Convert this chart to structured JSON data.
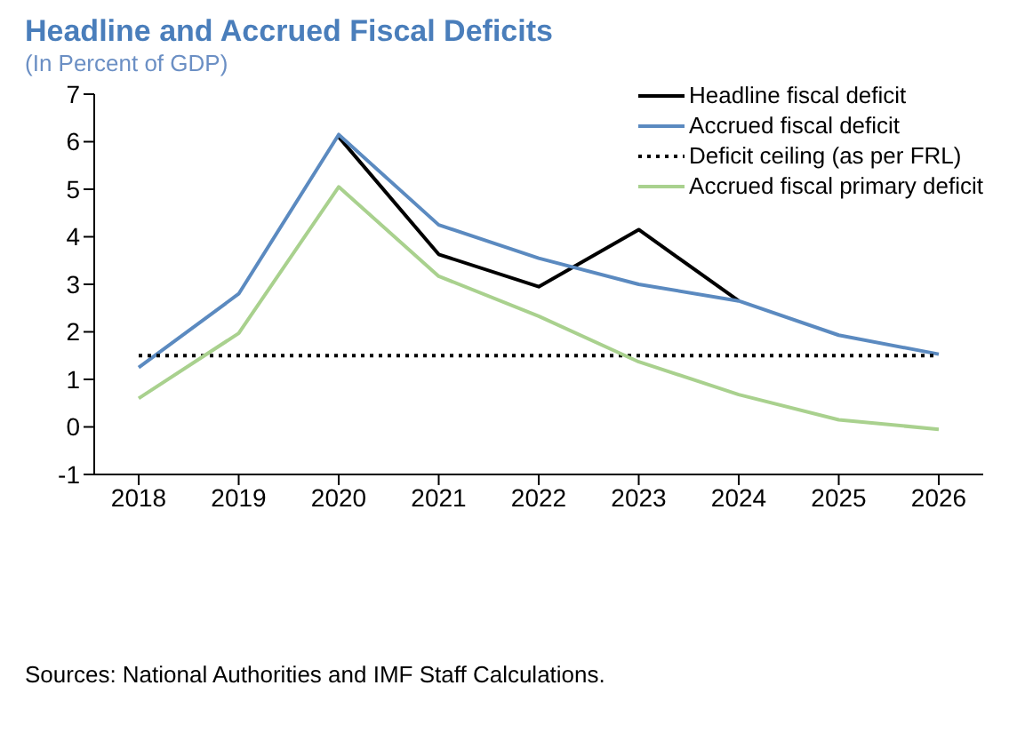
{
  "chart_data": {
    "type": "line",
    "title": "Headline and Accrued Fiscal Deficits",
    "subtitle": "(In Percent of GDP)",
    "annotations": [
      "Sources: National Authorities and IMF Staff Calculations."
    ],
    "categories": [
      "2018",
      "2019",
      "2020",
      "2021",
      "2022",
      "2023",
      "2024",
      "2025",
      "2026"
    ],
    "ylim": [
      -1,
      7
    ],
    "yticks": [
      -1,
      0,
      1,
      2,
      3,
      4,
      5,
      6,
      7
    ],
    "grid": false,
    "legend": "top right",
    "marker": "none",
    "series": [
      {
        "name": "Headline fiscal deficit",
        "color": "#000000",
        "line_style": "solid",
        "values": [
          null,
          null,
          6.1,
          3.63,
          2.95,
          4.15,
          2.65,
          null,
          null
        ]
      },
      {
        "name": "Accrued fiscal deficit",
        "color": "#5b8ac0",
        "line_style": "solid",
        "values": [
          1.25,
          2.8,
          6.15,
          4.25,
          3.55,
          3.0,
          2.65,
          1.93,
          1.53
        ]
      },
      {
        "name": "Deficit ceiling (as per FRL)",
        "color": "#000000",
        "line_style": "dotted",
        "values": [
          1.5,
          1.5,
          1.5,
          1.5,
          1.5,
          1.5,
          1.5,
          1.5,
          1.5
        ]
      },
      {
        "name": "Accrued fiscal primary deficit",
        "color": "#a9d18e",
        "line_style": "solid",
        "values": [
          0.6,
          1.97,
          5.05,
          3.17,
          2.33,
          1.37,
          0.68,
          0.15,
          -0.05
        ]
      }
    ]
  }
}
